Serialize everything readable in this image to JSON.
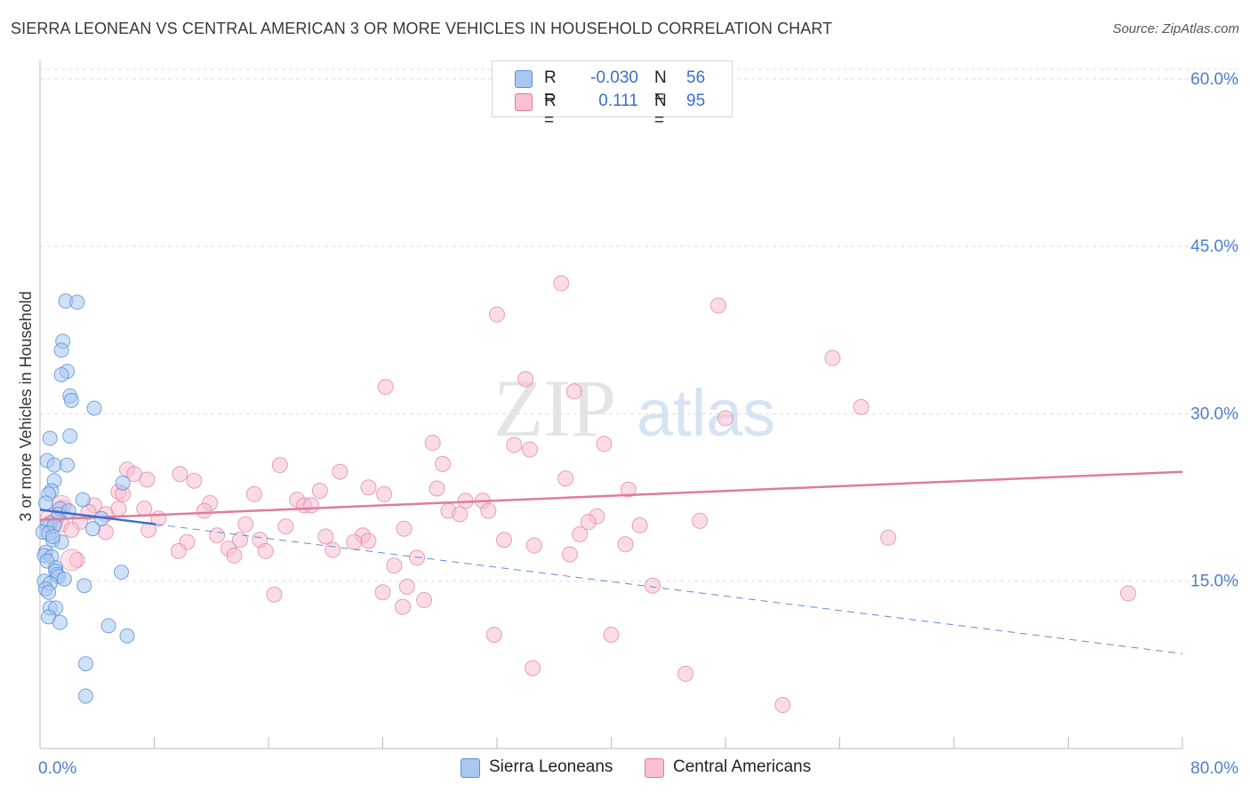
{
  "title": "SIERRA LEONEAN VS CENTRAL AMERICAN 3 OR MORE VEHICLES IN HOUSEHOLD CORRELATION CHART",
  "source": "Source: ZipAtlas.com",
  "watermark": {
    "zip": "ZIP",
    "atlas": "atlas"
  },
  "legend": {
    "r_label": "R =",
    "n_label": "N =",
    "rows": [
      {
        "r": "-0.030",
        "n": "56",
        "fill": "#a8c8f0",
        "stroke": "#5b8fd6"
      },
      {
        "r": "0.111",
        "n": "95",
        "fill": "#f8c0d2",
        "stroke": "#e07aa0"
      }
    ]
  },
  "bottom_legend": [
    {
      "label": "Sierra Leoneans",
      "fill": "#a8c8f0",
      "stroke": "#5b8fd6"
    },
    {
      "label": "Central Americans",
      "fill": "#f8c0d2",
      "stroke": "#e07aa0"
    }
  ],
  "chart_data": {
    "type": "scatter",
    "xlabel": "",
    "ylabel": "3 or more Vehicles in Household",
    "xlim": [
      0,
      80
    ],
    "ylim": [
      0,
      61.5
    ],
    "x_tick_labels": [
      "0.0%",
      "80.0%"
    ],
    "y_ticks": [
      {
        "value": 15,
        "label": "15.0%"
      },
      {
        "value": 30,
        "label": "30.0%"
      },
      {
        "value": 45,
        "label": "45.0%"
      },
      {
        "value": 60,
        "label": "60.0%"
      }
    ],
    "grid": "horizontal dashed",
    "colors": {
      "blue": "#5b8fd6",
      "pink": "#e07aa0",
      "blue_fill": "#a8c8f0",
      "pink_fill": "#f8c0d2"
    },
    "series": [
      {
        "name": "Sierra Leoneans",
        "r": -0.03,
        "n": 56,
        "points": [
          [
            1.8,
            40.1
          ],
          [
            2.6,
            40.0
          ],
          [
            1.6,
            36.5
          ],
          [
            1.5,
            35.7
          ],
          [
            1.9,
            33.8
          ],
          [
            1.5,
            33.5
          ],
          [
            2.1,
            31.6
          ],
          [
            2.2,
            31.2
          ],
          [
            3.8,
            30.5
          ],
          [
            2.1,
            28.0
          ],
          [
            0.7,
            27.8
          ],
          [
            0.5,
            25.8
          ],
          [
            1.0,
            25.4
          ],
          [
            1.9,
            25.4
          ],
          [
            1.0,
            24.0
          ],
          [
            5.8,
            23.8
          ],
          [
            0.8,
            23.1
          ],
          [
            0.6,
            22.8
          ],
          [
            3.0,
            22.3
          ],
          [
            0.4,
            22.0
          ],
          [
            1.4,
            21.5
          ],
          [
            1.3,
            21.0
          ],
          [
            4.3,
            20.6
          ],
          [
            0.7,
            20.2
          ],
          [
            0.5,
            20.0
          ],
          [
            1.0,
            20.0
          ],
          [
            3.7,
            19.7
          ],
          [
            0.2,
            19.4
          ],
          [
            0.6,
            19.3
          ],
          [
            0.9,
            18.7
          ],
          [
            1.5,
            18.5
          ],
          [
            0.4,
            17.6
          ],
          [
            0.3,
            17.3
          ],
          [
            0.8,
            17.2
          ],
          [
            0.5,
            16.8
          ],
          [
            1.1,
            16.2
          ],
          [
            1.1,
            15.9
          ],
          [
            1.2,
            15.6
          ],
          [
            1.3,
            15.4
          ],
          [
            5.7,
            15.8
          ],
          [
            1.7,
            15.2
          ],
          [
            0.3,
            15.0
          ],
          [
            0.7,
            14.8
          ],
          [
            3.1,
            14.6
          ],
          [
            0.4,
            14.3
          ],
          [
            0.6,
            14.0
          ],
          [
            0.7,
            12.6
          ],
          [
            1.1,
            12.6
          ],
          [
            0.6,
            11.8
          ],
          [
            1.4,
            11.3
          ],
          [
            4.8,
            11.0
          ],
          [
            6.1,
            10.1
          ],
          [
            3.2,
            7.6
          ],
          [
            3.2,
            4.7
          ],
          [
            2.0,
            21.3
          ],
          [
            0.9,
            19.0
          ]
        ],
        "trend_solid": [
          [
            0,
            21.4
          ],
          [
            8.1,
            20.1
          ]
        ],
        "trend_dashed": [
          [
            8.1,
            20.1
          ],
          [
            80,
            8.5
          ]
        ]
      },
      {
        "name": "Central Americans",
        "r": 0.111,
        "n": 95,
        "points": [
          [
            36.0,
            58.0
          ],
          [
            36.5,
            41.7
          ],
          [
            47.5,
            39.7
          ],
          [
            32.0,
            38.9
          ],
          [
            55.5,
            35.0
          ],
          [
            24.2,
            32.4
          ],
          [
            34.0,
            33.1
          ],
          [
            37.4,
            32.0
          ],
          [
            57.5,
            30.6
          ],
          [
            48.0,
            29.6
          ],
          [
            27.5,
            27.4
          ],
          [
            33.2,
            27.2
          ],
          [
            34.3,
            26.8
          ],
          [
            39.5,
            27.3
          ],
          [
            28.2,
            25.5
          ],
          [
            16.8,
            25.4
          ],
          [
            21.0,
            24.8
          ],
          [
            6.1,
            25.0
          ],
          [
            6.6,
            24.6
          ],
          [
            9.8,
            24.6
          ],
          [
            7.5,
            24.1
          ],
          [
            36.8,
            24.2
          ],
          [
            10.8,
            24.0
          ],
          [
            23.0,
            23.4
          ],
          [
            19.6,
            23.1
          ],
          [
            27.8,
            23.3
          ],
          [
            41.2,
            23.2
          ],
          [
            5.5,
            23.0
          ],
          [
            5.8,
            22.8
          ],
          [
            15.0,
            22.8
          ],
          [
            24.1,
            22.8
          ],
          [
            18.0,
            22.3
          ],
          [
            29.8,
            22.2
          ],
          [
            31.0,
            22.2
          ],
          [
            11.9,
            22.0
          ],
          [
            18.5,
            21.8
          ],
          [
            19.0,
            21.8
          ],
          [
            3.8,
            21.8
          ],
          [
            5.5,
            21.5
          ],
          [
            7.3,
            21.5
          ],
          [
            11.5,
            21.3
          ],
          [
            28.6,
            21.3
          ],
          [
            31.4,
            21.3
          ],
          [
            4.6,
            21.0
          ],
          [
            29.4,
            21.0
          ],
          [
            39.0,
            20.8
          ],
          [
            8.3,
            20.6
          ],
          [
            38.4,
            20.3
          ],
          [
            46.2,
            20.4
          ],
          [
            14.4,
            20.1
          ],
          [
            17.2,
            19.9
          ],
          [
            25.5,
            19.7
          ],
          [
            42.0,
            20.0
          ],
          [
            7.6,
            19.6
          ],
          [
            12.4,
            19.1
          ],
          [
            20.0,
            19.0
          ],
          [
            22.6,
            19.1
          ],
          [
            37.8,
            19.2
          ],
          [
            4.6,
            19.4
          ],
          [
            14.0,
            18.7
          ],
          [
            15.4,
            18.7
          ],
          [
            23.0,
            18.6
          ],
          [
            59.4,
            18.9
          ],
          [
            32.5,
            18.7
          ],
          [
            22.0,
            18.5
          ],
          [
            34.6,
            18.2
          ],
          [
            10.3,
            18.5
          ],
          [
            41.0,
            18.3
          ],
          [
            13.2,
            17.9
          ],
          [
            20.5,
            17.8
          ],
          [
            9.7,
            17.7
          ],
          [
            15.8,
            17.7
          ],
          [
            13.6,
            17.3
          ],
          [
            37.1,
            17.4
          ],
          [
            26.4,
            17.1
          ],
          [
            2.6,
            16.9
          ],
          [
            24.8,
            16.4
          ],
          [
            42.9,
            14.6
          ],
          [
            25.7,
            14.5
          ],
          [
            16.4,
            13.8
          ],
          [
            24.0,
            14.0
          ],
          [
            26.9,
            13.3
          ],
          [
            25.4,
            12.7
          ],
          [
            76.2,
            13.9
          ],
          [
            31.8,
            10.2
          ],
          [
            40.0,
            10.2
          ],
          [
            34.5,
            7.2
          ],
          [
            45.2,
            6.7
          ],
          [
            52.0,
            3.9
          ],
          [
            1.6,
            21.6
          ],
          [
            2.8,
            20.3
          ],
          [
            1.1,
            20.5
          ],
          [
            1.5,
            20.1
          ],
          [
            3.4,
            21.2
          ],
          [
            2.2,
            19.6
          ]
        ],
        "trend_solid": [
          [
            0,
            20.5
          ],
          [
            80,
            24.8
          ]
        ]
      }
    ]
  }
}
